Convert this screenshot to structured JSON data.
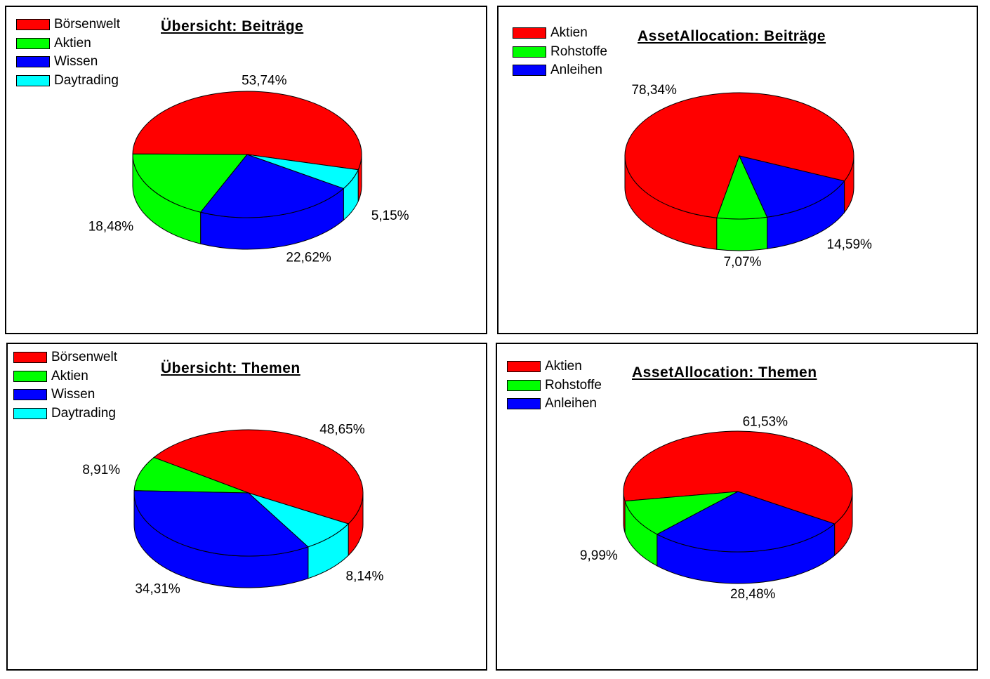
{
  "chart_data": [
    {
      "type": "pie",
      "title": "Übersicht: Beiträge",
      "categories": [
        "Börsenwelt",
        "Aktien",
        "Wissen",
        "Daytrading"
      ],
      "values": [
        53.74,
        18.48,
        22.62,
        5.15
      ],
      "labels": [
        "53,74%",
        "18,48%",
        "22,62%",
        "5,15%"
      ],
      "colors": [
        "#ff0000",
        "#00ff00",
        "#0000ff",
        "#00ffff"
      ],
      "legend": "top-left"
    },
    {
      "type": "pie",
      "title": "AssetAllocation: Beiträge",
      "categories": [
        "Aktien",
        "Rohstoffe",
        "Anleihen"
      ],
      "values": [
        78.34,
        7.07,
        14.59
      ],
      "labels": [
        "78,34%",
        "7,07%",
        "14,59%"
      ],
      "colors": [
        "#ff0000",
        "#00ff00",
        "#0000ff"
      ],
      "legend": "top-left"
    },
    {
      "type": "pie",
      "title": "Übersicht: Themen",
      "categories": [
        "Börsenwelt",
        "Aktien",
        "Wissen",
        "Daytrading"
      ],
      "values": [
        48.65,
        8.91,
        34.31,
        8.14
      ],
      "labels": [
        "48,65%",
        "8,91%",
        "34,31%",
        "8,14%"
      ],
      "colors": [
        "#ff0000",
        "#00ff00",
        "#0000ff",
        "#00ffff"
      ],
      "legend": "top-left"
    },
    {
      "type": "pie",
      "title": "AssetAllocation: Themen",
      "categories": [
        "Aktien",
        "Rohstoffe",
        "Anleihen"
      ],
      "values": [
        61.53,
        9.99,
        28.48
      ],
      "labels": [
        "61,53%",
        "9,99%",
        "28,48%"
      ],
      "colors": [
        "#ff0000",
        "#00ff00",
        "#0000ff"
      ],
      "legend": "top-left"
    }
  ]
}
